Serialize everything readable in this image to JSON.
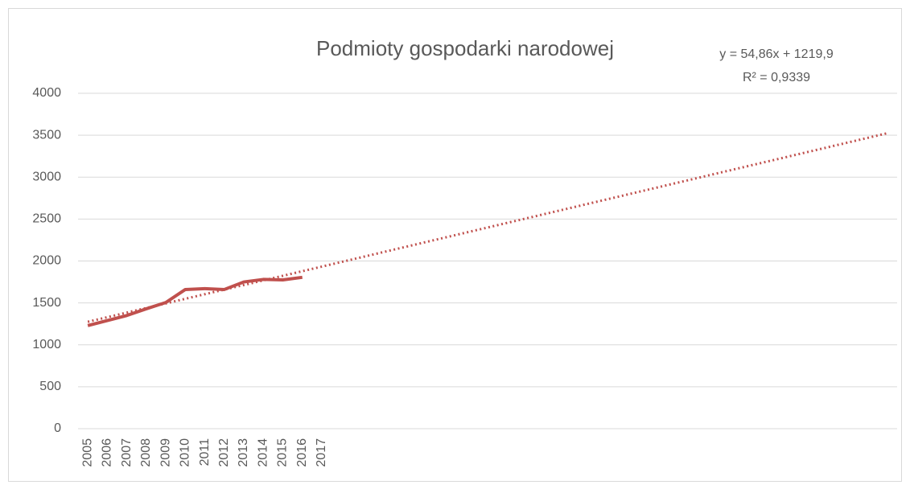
{
  "chart_data": {
    "type": "line",
    "title": "Podmioty gospodarki narodowej",
    "categories": [
      "2005",
      "2006",
      "2007",
      "2008",
      "2009",
      "2010",
      "2011",
      "2012",
      "2013",
      "2014",
      "2015",
      "2016",
      "2017",
      null,
      null,
      null,
      null,
      null,
      null,
      null,
      null,
      null,
      null,
      null,
      null,
      null,
      null,
      null,
      null,
      null,
      null,
      null,
      null,
      null,
      null,
      null,
      null,
      null,
      null,
      null,
      null,
      null
    ],
    "series": [
      {
        "name": "Podmioty gospodarki narodowej",
        "color": "#c0504d",
        "values": [
          1230,
          1290,
          1350,
          1430,
          1505,
          1660,
          1670,
          1660,
          1750,
          1780,
          1775,
          1805,
          null,
          null,
          null,
          null,
          null,
          null,
          null,
          null,
          null,
          null,
          null,
          null,
          null,
          null,
          null,
          null,
          null,
          null,
          null,
          null,
          null,
          null,
          null,
          null,
          null,
          null,
          null,
          null,
          null,
          null
        ]
      }
    ],
    "trendline": {
      "slope": 54.86,
      "intercept": 1219.9,
      "equation": "y = 54,86x + 1219,9",
      "r_squared": 0.9339,
      "r_squared_label": "R² = 0,9339"
    },
    "ylim": [
      0,
      4000
    ],
    "yticks": [
      0,
      500,
      1000,
      1500,
      2000,
      2500,
      3000,
      3500,
      4000
    ],
    "grid": true
  }
}
